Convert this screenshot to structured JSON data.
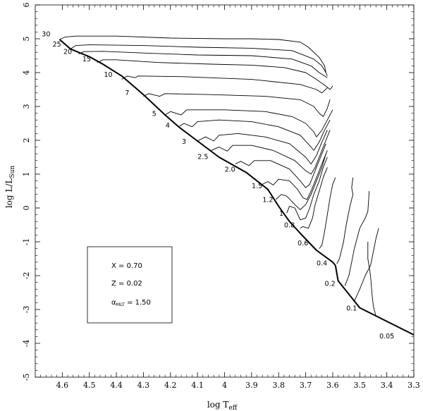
{
  "chart_data": {
    "type": "line",
    "xlabel": "log T",
    "xlabel_sub": "eff",
    "ylabel": "log L/L",
    "ylabel_sub": "Sun",
    "xlim": [
      4.7,
      3.3
    ],
    "ylim": [
      -5,
      6
    ],
    "x_ticks": [
      "4.6",
      "4.5",
      "4.4",
      "4.3",
      "4.2",
      "4.1",
      "4",
      "3.9",
      "3.8",
      "3.7",
      "3.6",
      "3.5",
      "3.4",
      "3.3"
    ],
    "y_ticks": [
      "-5",
      "-4",
      "-3",
      "-2",
      "-1",
      "0",
      "1",
      "2",
      "3",
      "4",
      "5",
      "6"
    ],
    "grid": false,
    "zams": [
      [
        4.61,
        4.98
      ],
      [
        4.57,
        4.7
      ],
      [
        4.5,
        4.47
      ],
      [
        4.45,
        4.25
      ],
      [
        4.38,
        3.9
      ],
      [
        4.3,
        3.35
      ],
      [
        4.22,
        2.75
      ],
      [
        4.17,
        2.4
      ],
      [
        4.1,
        1.98
      ],
      [
        4.02,
        1.5
      ],
      [
        3.92,
        1.05
      ],
      [
        3.84,
        0.55
      ],
      [
        3.8,
        0.05
      ],
      [
        3.76,
        -0.4
      ],
      [
        3.72,
        -0.75
      ],
      [
        3.66,
        -1.25
      ],
      [
        3.6,
        -1.6
      ],
      [
        3.59,
        -1.7
      ],
      [
        3.58,
        -2.15
      ],
      [
        3.54,
        -2.55
      ],
      [
        3.5,
        -2.95
      ],
      [
        3.3,
        -3.75
      ]
    ],
    "tracks": [
      {
        "mass": "30",
        "points": [
          [
            4.61,
            4.98
          ],
          [
            4.59,
            5.05
          ],
          [
            4.55,
            5.08
          ],
          [
            4.4,
            5.08
          ],
          [
            4.2,
            5.02
          ],
          [
            4.0,
            5.0
          ],
          [
            3.9,
            5.0
          ],
          [
            3.8,
            4.98
          ],
          [
            3.72,
            4.9
          ],
          [
            3.69,
            4.75
          ],
          [
            3.65,
            4.45
          ],
          [
            3.63,
            4.2
          ],
          [
            3.625,
            4.0
          ],
          [
            3.62,
            3.9
          ]
        ]
      },
      {
        "mass": "25",
        "points": [
          [
            4.57,
            4.7
          ],
          [
            4.55,
            4.8
          ],
          [
            4.5,
            4.82
          ],
          [
            4.3,
            4.8
          ],
          [
            4.1,
            4.75
          ],
          [
            3.9,
            4.72
          ],
          [
            3.75,
            4.65
          ],
          [
            3.67,
            4.4
          ],
          [
            3.64,
            4.2
          ],
          [
            3.625,
            4.0
          ]
        ]
      },
      {
        "mass": "20",
        "points": [
          [
            4.54,
            4.55
          ],
          [
            4.52,
            4.62
          ],
          [
            4.45,
            4.63
          ],
          [
            4.3,
            4.58
          ],
          [
            4.1,
            4.52
          ],
          [
            3.9,
            4.5
          ],
          [
            3.75,
            4.4
          ],
          [
            3.68,
            4.2
          ],
          [
            3.65,
            4.0
          ],
          [
            3.62,
            3.85
          ]
        ]
      },
      {
        "mass": "15",
        "points": [
          [
            4.47,
            4.3
          ],
          [
            4.45,
            4.38
          ],
          [
            4.4,
            4.38
          ],
          [
            4.25,
            4.3
          ],
          [
            4.05,
            4.25
          ],
          [
            3.9,
            4.22
          ],
          [
            3.78,
            4.15
          ],
          [
            3.7,
            4.0
          ],
          [
            3.66,
            3.8
          ],
          [
            3.625,
            3.6
          ],
          [
            3.61,
            3.5
          ],
          [
            3.6,
            3.6
          ]
        ]
      },
      {
        "mass": "10",
        "points": [
          [
            4.38,
            3.8
          ],
          [
            4.36,
            3.9
          ],
          [
            4.33,
            3.85
          ],
          [
            4.32,
            3.9
          ],
          [
            4.15,
            3.88
          ],
          [
            3.9,
            3.8
          ],
          [
            3.72,
            3.65
          ],
          [
            3.66,
            3.5
          ],
          [
            3.64,
            3.4
          ],
          [
            3.62,
            3.55
          ]
        ]
      },
      {
        "mass": "7",
        "points": [
          [
            4.3,
            3.3
          ],
          [
            4.28,
            3.38
          ],
          [
            4.24,
            3.3
          ],
          [
            4.22,
            3.38
          ],
          [
            4.05,
            3.35
          ],
          [
            3.85,
            3.3
          ],
          [
            3.72,
            3.2
          ],
          [
            3.67,
            3.0
          ],
          [
            3.65,
            2.8
          ],
          [
            3.635,
            2.7
          ],
          [
            3.62,
            2.95
          ],
          [
            3.61,
            3.2
          ]
        ]
      },
      {
        "mass": "5",
        "points": [
          [
            4.22,
            2.75
          ],
          [
            4.2,
            2.85
          ],
          [
            4.16,
            2.75
          ],
          [
            4.14,
            2.9
          ],
          [
            4.0,
            2.9
          ],
          [
            3.85,
            2.85
          ],
          [
            3.75,
            2.7
          ],
          [
            3.7,
            2.5
          ],
          [
            3.67,
            2.25
          ],
          [
            3.66,
            2.1
          ],
          [
            3.64,
            2.3
          ],
          [
            3.62,
            2.6
          ],
          [
            3.6,
            2.9
          ]
        ]
      },
      {
        "mass": "4",
        "points": [
          [
            4.17,
            2.4
          ],
          [
            4.15,
            2.5
          ],
          [
            4.12,
            2.4
          ],
          [
            4.1,
            2.55
          ],
          [
            4.02,
            2.6
          ],
          [
            3.9,
            2.55
          ],
          [
            3.8,
            2.4
          ],
          [
            3.72,
            2.15
          ],
          [
            3.68,
            1.8
          ],
          [
            3.67,
            1.7
          ],
          [
            3.65,
            1.95
          ],
          [
            3.63,
            2.3
          ],
          [
            3.61,
            2.6
          ]
        ]
      },
      {
        "mass": "3",
        "points": [
          [
            4.1,
            1.98
          ],
          [
            4.07,
            2.1
          ],
          [
            4.04,
            1.98
          ],
          [
            4.02,
            2.15
          ],
          [
            3.95,
            2.2
          ],
          [
            3.85,
            2.1
          ],
          [
            3.76,
            1.9
          ],
          [
            3.7,
            1.5
          ],
          [
            3.68,
            1.3
          ],
          [
            3.66,
            1.55
          ],
          [
            3.64,
            1.95
          ],
          [
            3.62,
            2.3
          ]
        ]
      },
      {
        "mass": "2.5",
        "points": [
          [
            4.05,
            1.7
          ],
          [
            4.02,
            1.8
          ],
          [
            3.99,
            1.68
          ],
          [
            3.97,
            1.85
          ],
          [
            3.9,
            1.85
          ],
          [
            3.82,
            1.7
          ],
          [
            3.74,
            1.4
          ],
          [
            3.7,
            1.1
          ],
          [
            3.68,
            1.0
          ],
          [
            3.665,
            1.2
          ],
          [
            3.645,
            1.6
          ],
          [
            3.625,
            2.0
          ],
          [
            3.61,
            2.3
          ]
        ]
      },
      {
        "mass": "2.0",
        "points": [
          [
            3.96,
            1.3
          ],
          [
            3.94,
            1.38
          ],
          [
            3.91,
            1.25
          ],
          [
            3.89,
            1.4
          ],
          [
            3.83,
            1.4
          ],
          [
            3.76,
            1.15
          ],
          [
            3.72,
            0.8
          ],
          [
            3.7,
            0.6
          ],
          [
            3.685,
            0.7
          ],
          [
            3.665,
            1.1
          ],
          [
            3.645,
            1.5
          ],
          [
            3.625,
            1.9
          ]
        ]
      },
      {
        "mass": "1.5",
        "points": [
          [
            3.86,
            0.7
          ],
          [
            3.84,
            0.78
          ],
          [
            3.82,
            0.68
          ],
          [
            3.8,
            0.85
          ],
          [
            3.76,
            0.8
          ],
          [
            3.73,
            0.55
          ],
          [
            3.71,
            0.3
          ],
          [
            3.695,
            0.25
          ],
          [
            3.68,
            0.5
          ],
          [
            3.66,
            0.9
          ],
          [
            3.64,
            1.3
          ],
          [
            3.62,
            1.7
          ]
        ]
      },
      {
        "mass": "1.2",
        "points": [
          [
            3.81,
            0.25
          ],
          [
            3.79,
            0.4
          ],
          [
            3.77,
            0.35
          ],
          [
            3.74,
            0.1
          ],
          [
            3.72,
            -0.05
          ],
          [
            3.7,
            0.1
          ],
          [
            3.68,
            0.4
          ],
          [
            3.66,
            0.8
          ],
          [
            3.64,
            1.2
          ],
          [
            3.625,
            1.6
          ]
        ]
      },
      {
        "mass": "1",
        "points": [
          [
            3.77,
            -0.15
          ],
          [
            3.76,
            0.05
          ],
          [
            3.74,
            0.0
          ],
          [
            3.72,
            -0.35
          ],
          [
            3.7,
            -0.3
          ],
          [
            3.685,
            0.0
          ],
          [
            3.67,
            0.4
          ],
          [
            3.65,
            0.8
          ],
          [
            3.635,
            1.2
          ],
          [
            3.62,
            1.5
          ]
        ]
      },
      {
        "mass": "0.8",
        "points": [
          [
            3.72,
            -0.6
          ],
          [
            3.71,
            -0.55
          ],
          [
            3.69,
            -0.6
          ],
          [
            3.675,
            -0.3
          ],
          [
            3.665,
            0.1
          ],
          [
            3.65,
            0.5
          ],
          [
            3.635,
            0.9
          ],
          [
            3.62,
            1.2
          ]
        ]
      },
      {
        "mass": "0.6",
        "points": [
          [
            3.65,
            -1.2
          ],
          [
            3.64,
            -1.1
          ],
          [
            3.63,
            -0.7
          ],
          [
            3.62,
            -0.2
          ],
          [
            3.61,
            0.3
          ],
          [
            3.6,
            0.7
          ],
          [
            3.59,
            0.9
          ]
        ]
      },
      {
        "mass": "0.4",
        "points": [
          [
            3.585,
            -1.65
          ],
          [
            3.575,
            -1.5
          ],
          [
            3.56,
            -1.0
          ],
          [
            3.55,
            -0.5
          ],
          [
            3.54,
            -0.1
          ],
          [
            3.535,
            0.1
          ],
          [
            3.525,
            0.4
          ],
          [
            3.53,
            0.6
          ],
          [
            3.525,
            0.9
          ]
        ]
      },
      {
        "mass": "0.2",
        "points": [
          [
            3.555,
            -2.3
          ],
          [
            3.54,
            -2.0
          ],
          [
            3.53,
            -1.6
          ],
          [
            3.52,
            -1.2
          ],
          [
            3.5,
            -0.6
          ],
          [
            3.48,
            -0.3
          ],
          [
            3.47,
            -0.1
          ],
          [
            3.465,
            0.5
          ]
        ]
      },
      {
        "mass": "0.1",
        "points": [
          [
            3.52,
            -2.75
          ],
          [
            3.5,
            -2.4
          ],
          [
            3.48,
            -2.0
          ],
          [
            3.46,
            -1.7
          ],
          [
            3.45,
            -1.3
          ],
          [
            3.44,
            -0.9
          ],
          [
            3.43,
            -0.6
          ]
        ]
      },
      {
        "mass": "0.05",
        "points": [
          [
            3.44,
            -3.2
          ],
          [
            3.45,
            -2.9
          ],
          [
            3.455,
            -2.5
          ],
          [
            3.46,
            -2.0
          ],
          [
            3.47,
            -1.5
          ],
          [
            3.47,
            -1.0
          ]
        ]
      }
    ],
    "mass_labels": [
      {
        "text": "30",
        "x": 4.66,
        "y": 5.07
      },
      {
        "text": "25",
        "x": 4.62,
        "y": 4.77
      },
      {
        "text": "20",
        "x": 4.58,
        "y": 4.55
      },
      {
        "text": "15",
        "x": 4.51,
        "y": 4.33
      },
      {
        "text": "10",
        "x": 4.43,
        "y": 3.87
      },
      {
        "text": "7",
        "x": 4.36,
        "y": 3.33
      },
      {
        "text": "5",
        "x": 4.26,
        "y": 2.72
      },
      {
        "text": "4",
        "x": 4.21,
        "y": 2.38
      },
      {
        "text": "3",
        "x": 4.15,
        "y": 1.9
      },
      {
        "text": "2.5",
        "x": 4.08,
        "y": 1.45
      },
      {
        "text": "2.0",
        "x": 3.98,
        "y": 1.07
      },
      {
        "text": "1.5",
        "x": 3.88,
        "y": 0.58
      },
      {
        "text": "1.2",
        "x": 3.84,
        "y": 0.18
      },
      {
        "text": "1",
        "x": 3.79,
        "y": -0.23
      },
      {
        "text": "0.8",
        "x": 3.76,
        "y": -0.57
      },
      {
        "text": "0.6",
        "x": 3.71,
        "y": -1.1
      },
      {
        "text": "0.4",
        "x": 3.64,
        "y": -1.7
      },
      {
        "text": "0.2",
        "x": 3.61,
        "y": -2.3
      },
      {
        "text": "0.1",
        "x": 3.53,
        "y": -3.03
      },
      {
        "text": "0.05",
        "x": 3.4,
        "y": -3.85
      }
    ],
    "legend_box": {
      "position": "bottom-left",
      "lines": [
        {
          "main": "X = 0.70",
          "sub": ""
        },
        {
          "main": "Z = 0.02",
          "sub": ""
        },
        {
          "main": "α",
          "sub": "MLT",
          "rest": " = 1.50"
        }
      ]
    }
  }
}
